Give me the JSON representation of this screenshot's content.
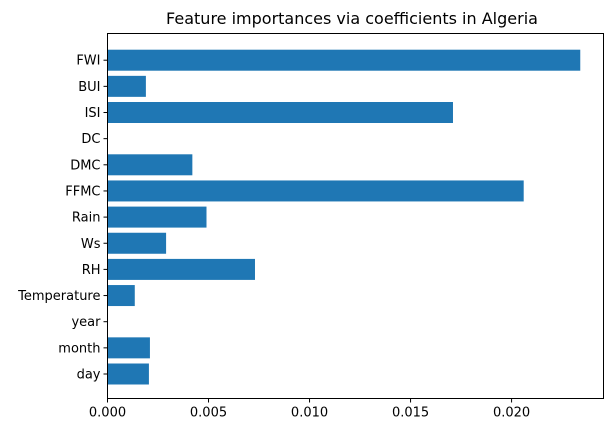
{
  "chart_data": {
    "type": "bar",
    "orientation": "horizontal",
    "title": "Feature importances via coefficients in Algeria",
    "xlabel": "",
    "ylabel": "",
    "categories": [
      "day",
      "month",
      "year",
      "Temperature",
      "RH",
      "Ws",
      "Rain ",
      "FFMC",
      "DMC",
      "DC",
      "ISI",
      "BUI",
      "FWI"
    ],
    "values": [
      0.00205,
      0.0021,
      0.0,
      0.00135,
      0.0073,
      0.0029,
      0.0049,
      0.0206,
      0.0042,
      0.0,
      0.0171,
      0.0019,
      0.0234
    ],
    "xlim": [
      0,
      0.02455
    ],
    "xticks": [
      0.0,
      0.005,
      0.01,
      0.015,
      0.02
    ],
    "xtick_labels": [
      "0.000",
      "0.005",
      "0.010",
      "0.015",
      "0.020"
    ],
    "grid": false,
    "legend": "none",
    "colors": {
      "bar": "#1f77b4"
    }
  }
}
